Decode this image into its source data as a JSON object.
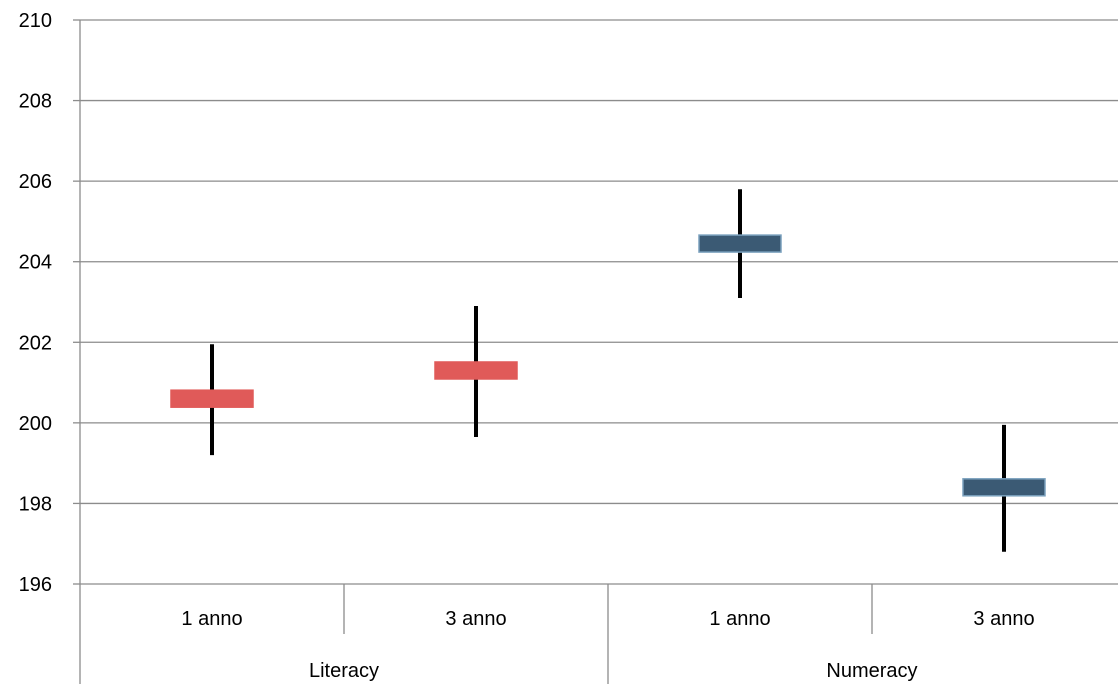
{
  "chart_data": {
    "type": "error-bar",
    "title": "",
    "xlabel": "",
    "ylabel": "",
    "ylim": [
      196,
      210
    ],
    "yticks": [
      196,
      198,
      200,
      202,
      204,
      206,
      208,
      210
    ],
    "ytick_labels": [
      "196",
      "198",
      "200",
      "202",
      "204",
      "206",
      "208",
      "210"
    ],
    "grid": true,
    "legend": "none",
    "groups": [
      {
        "label": "Literacy",
        "color": "#e05a59",
        "items": [
          {
            "category": "1 anno",
            "mean": 200.6,
            "low": 199.2,
            "high": 201.95
          },
          {
            "category": "3 anno",
            "mean": 201.3,
            "low": 199.65,
            "high": 202.9
          }
        ]
      },
      {
        "label": "Numeracy",
        "color": "#3b5a74",
        "items": [
          {
            "category": "1 anno",
            "mean": 204.45,
            "low": 203.1,
            "high": 205.8
          },
          {
            "category": "3 anno",
            "mean": 198.4,
            "low": 196.8,
            "high": 199.95
          }
        ]
      }
    ]
  }
}
